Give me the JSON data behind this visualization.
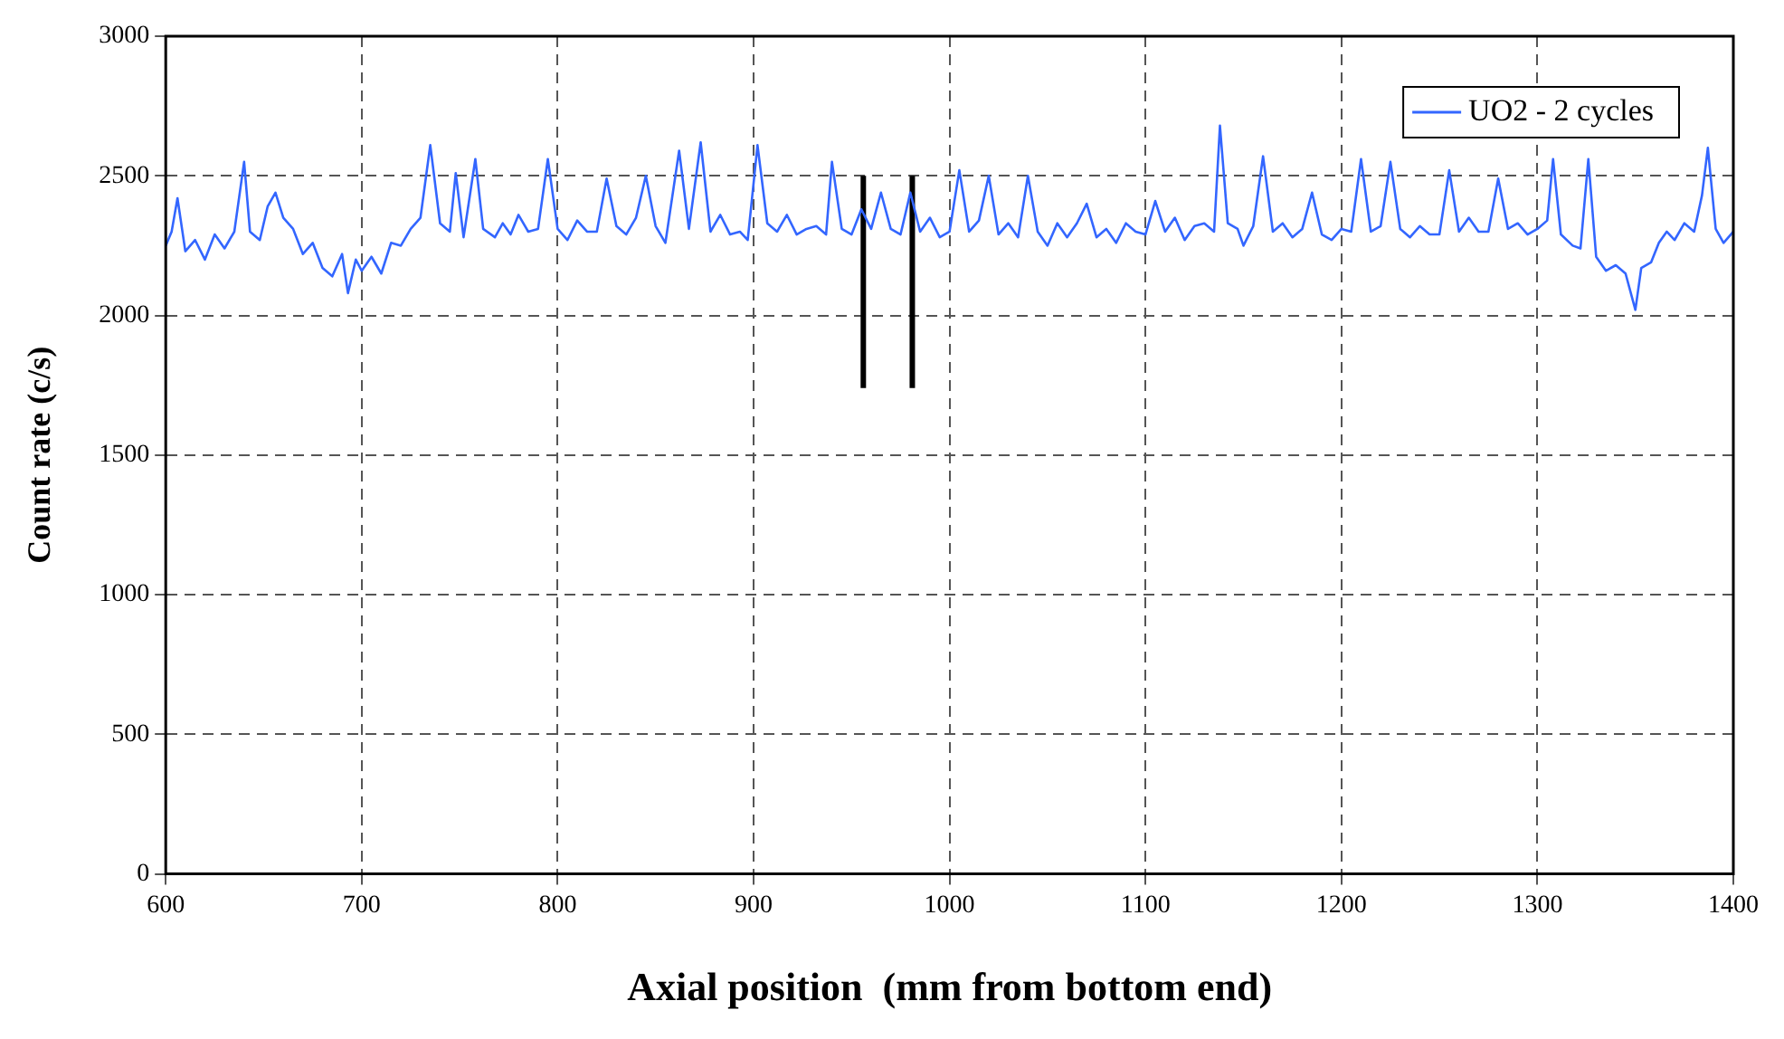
{
  "chart_data": {
    "type": "line",
    "xlabel": "Axial position  (mm from bottom end)",
    "ylabel": "Count rate (c/s)",
    "xlim": [
      600,
      1400
    ],
    "xticks": [
      600,
      700,
      800,
      900,
      1000,
      1100,
      1200,
      1300,
      1400
    ],
    "ylim": [
      0,
      3000
    ],
    "yticks": [
      0,
      500,
      1000,
      1500,
      2000,
      2500,
      3000
    ],
    "grid": true,
    "legend": "top right",
    "marker": "none",
    "line_style": "solid",
    "series": [
      {
        "name": "UO2 - 2 cycles",
        "color": "#3366ff",
        "x": [
          600,
          603,
          606,
          610,
          615,
          620,
          625,
          630,
          635,
          640,
          643,
          648,
          652,
          656,
          660,
          665,
          670,
          675,
          680,
          685,
          690,
          693,
          697,
          700,
          705,
          710,
          715,
          720,
          725,
          730,
          735,
          740,
          745,
          748,
          752,
          758,
          762,
          768,
          772,
          776,
          780,
          785,
          790,
          795,
          800,
          805,
          810,
          815,
          820,
          825,
          830,
          835,
          840,
          845,
          850,
          855,
          862,
          867,
          873,
          878,
          883,
          888,
          893,
          897,
          902,
          907,
          912,
          917,
          922,
          927,
          932,
          937,
          940,
          945,
          950,
          955,
          960,
          965,
          970,
          975,
          980,
          985,
          990,
          995,
          1000,
          1005,
          1010,
          1015,
          1020,
          1025,
          1030,
          1035,
          1040,
          1045,
          1050,
          1055,
          1060,
          1065,
          1070,
          1075,
          1080,
          1085,
          1090,
          1095,
          1100,
          1105,
          1110,
          1115,
          1120,
          1125,
          1130,
          1135,
          1138,
          1142,
          1147,
          1150,
          1155,
          1160,
          1165,
          1170,
          1175,
          1180,
          1185,
          1190,
          1195,
          1200,
          1205,
          1210,
          1215,
          1220,
          1225,
          1230,
          1235,
          1240,
          1245,
          1250,
          1255,
          1260,
          1265,
          1270,
          1275,
          1280,
          1285,
          1290,
          1295,
          1300,
          1305,
          1308,
          1312,
          1318,
          1322,
          1326,
          1330,
          1335,
          1340,
          1345,
          1350,
          1353,
          1358,
          1362,
          1366,
          1370,
          1375,
          1380,
          1384,
          1387,
          1391,
          1395,
          1400
        ],
        "values": [
          2250,
          2300,
          2420,
          2230,
          2270,
          2200,
          2290,
          2240,
          2300,
          2550,
          2300,
          2270,
          2390,
          2440,
          2350,
          2310,
          2220,
          2260,
          2170,
          2140,
          2220,
          2080,
          2200,
          2160,
          2210,
          2150,
          2260,
          2250,
          2310,
          2350,
          2610,
          2330,
          2300,
          2510,
          2280,
          2560,
          2310,
          2280,
          2330,
          2290,
          2360,
          2300,
          2310,
          2560,
          2310,
          2270,
          2340,
          2300,
          2300,
          2490,
          2320,
          2290,
          2350,
          2500,
          2320,
          2260,
          2590,
          2310,
          2620,
          2300,
          2360,
          2290,
          2300,
          2270,
          2610,
          2330,
          2300,
          2360,
          2290,
          2310,
          2320,
          2290,
          2550,
          2310,
          2290,
          2380,
          2310,
          2440,
          2310,
          2290,
          2440,
          2300,
          2350,
          2280,
          2300,
          2520,
          2300,
          2340,
          2500,
          2290,
          2330,
          2280,
          2500,
          2300,
          2250,
          2330,
          2280,
          2330,
          2400,
          2280,
          2310,
          2260,
          2330,
          2300,
          2290,
          2410,
          2300,
          2350,
          2270,
          2320,
          2330,
          2300,
          2680,
          2330,
          2310,
          2250,
          2320,
          2570,
          2300,
          2330,
          2280,
          2310,
          2440,
          2290,
          2270,
          2310,
          2300,
          2560,
          2300,
          2320,
          2550,
          2310,
          2280,
          2320,
          2290,
          2290,
          2520,
          2300,
          2350,
          2300,
          2300,
          2490,
          2310,
          2330,
          2290,
          2310,
          2340,
          2560,
          2290,
          2250,
          2240,
          2560,
          2210,
          2160,
          2180,
          2150,
          2020,
          2170,
          2190,
          2260,
          2300,
          2270,
          2330,
          2300,
          2430,
          2600,
          2310,
          2260,
          2300
        ]
      },
      {
        "color": "#000000",
        "x": [
          956,
          956
        ],
        "values": [
          1740,
          2500
        ]
      },
      {
        "color": "#000000",
        "x": [
          981,
          981
        ],
        "values": [
          1740,
          2500
        ]
      }
    ]
  }
}
